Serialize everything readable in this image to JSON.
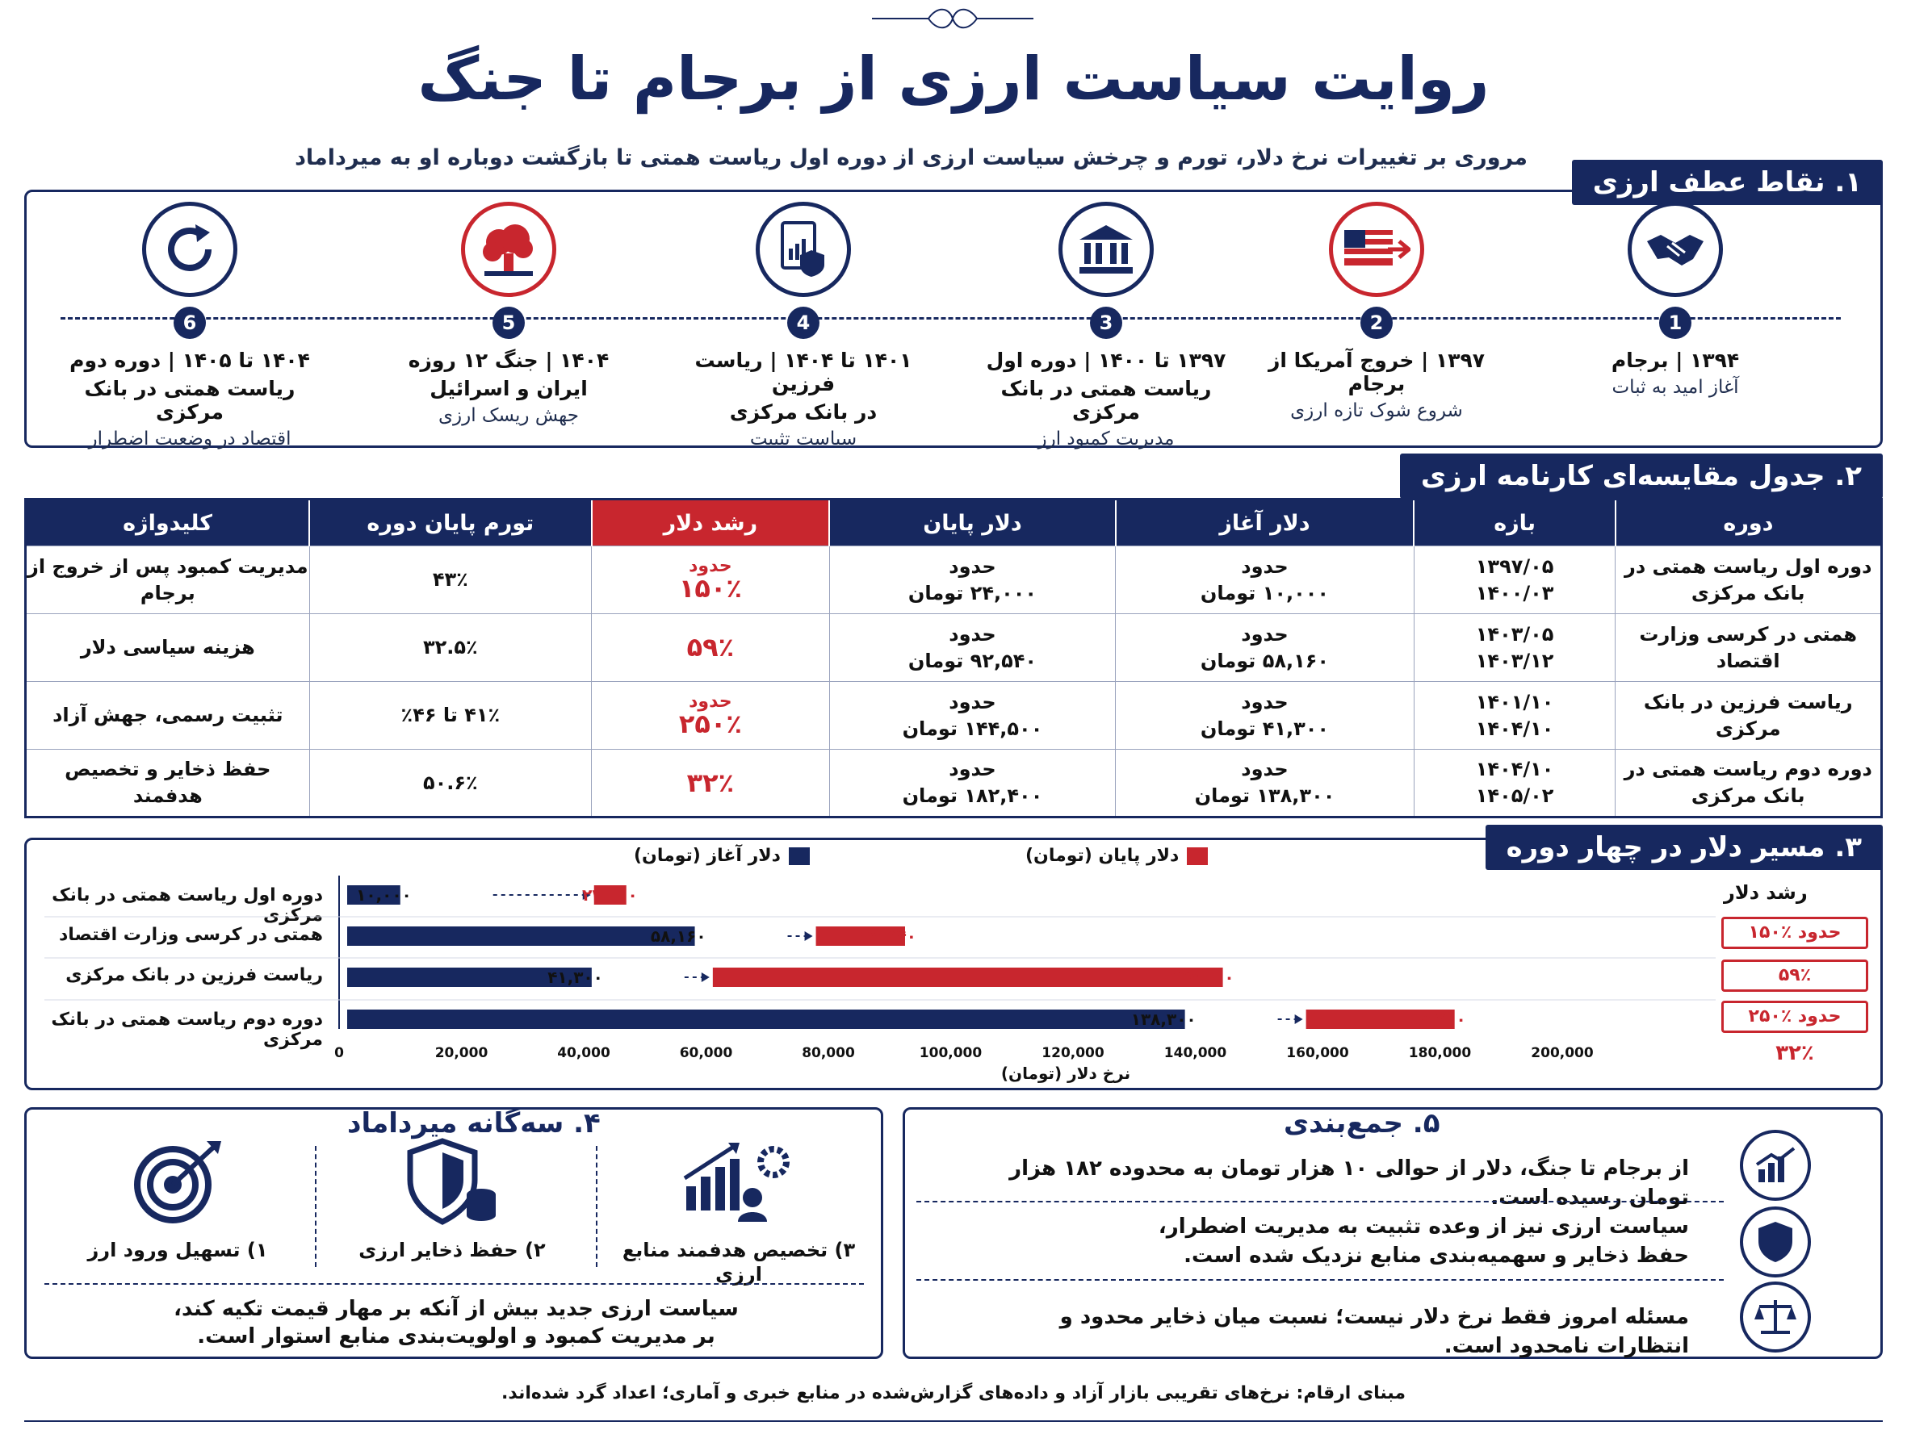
{
  "header": {
    "title": "روایت سیاست ارزی از برجام تا جنگ",
    "subtitle": "مروری بر تغییرات نرخ دلار، تورم و چرخش سیاست ارزی از دوره اول ریاست همتی تا بازگشت دوباره او به میرداماد"
  },
  "section1": {
    "heading": "۱. نقاط عطف ارزی",
    "items": [
      {
        "num": "1",
        "icon": "handshake-icon",
        "title": "۱۳۹۴ | برجام",
        "sub": "",
        "desc": "آغاز امید به ثبات"
      },
      {
        "num": "2",
        "icon": "usa-flag-exit-icon",
        "title": "۱۳۹۷ | خروج آمریکا از برجام",
        "sub": "",
        "desc": "شروع شوک تازه ارزی"
      },
      {
        "num": "3",
        "icon": "bank-building-icon",
        "title": "۱۳۹۷ تا ۱۴۰۰ | دوره اول",
        "sub": "ریاست همتی در بانک مرکزی",
        "desc": "مدیریت کمبود ارز"
      },
      {
        "num": "4",
        "icon": "policy-document-icon",
        "title": "۱۴۰۱ تا ۱۴۰۴ | ریاست فرزین",
        "sub": "در بانک مرکزی",
        "desc": "سیاست تثبیت"
      },
      {
        "num": "5",
        "icon": "explosion-icon",
        "title": "۱۴۰۴ | جنگ ۱۲ روزه",
        "sub": "ایران و اسرائیل",
        "desc": "جهش ریسک ارزی"
      },
      {
        "num": "6",
        "icon": "refresh-icon",
        "title": "۱۴۰۴ تا ۱۴۰۵ | دوره دوم",
        "sub": "ریاست همتی در بانک مرکزی",
        "desc": "اقتصاد در وضعیت اضطرار"
      }
    ]
  },
  "section2": {
    "heading": "۲. جدول مقایسه‌ای کارنامه ارزی",
    "columns": [
      "دوره",
      "بازه",
      "دلار آغاز",
      "دلار پایان",
      "رشد دلار",
      "تورم پایان دوره",
      "کلیدواژه"
    ],
    "rows": [
      {
        "period": "دوره اول ریاست همتی در بانک مرکزی",
        "range1": "۱۳۹۷/۰۵",
        "range2": "۱۴۰۰/۰۳",
        "start_prefix": "حدود",
        "start": "۱۰,۰۰۰ تومان",
        "end_prefix": "حدود",
        "end": "۲۴,۰۰۰ تومان",
        "growth_prefix": "حدود",
        "growth": "۱۵۰٪",
        "inflation": "۴۳٪",
        "keyword": "مدیریت کمبود پس از خروج از برجام"
      },
      {
        "period": "همتی در کرسی وزارت اقتصاد",
        "range1": "۱۴۰۳/۰۵",
        "range2": "۱۴۰۳/۱۲",
        "start_prefix": "حدود",
        "start": "۵۸,۱۶۰ تومان",
        "end_prefix": "حدود",
        "end": "۹۲,۵۴۰ تومان",
        "growth_prefix": "",
        "growth": "۵۹٪",
        "inflation": "۳۲.۵٪",
        "keyword": "هزینه سیاسی دلار"
      },
      {
        "period": "ریاست فرزین در بانک مرکزی",
        "range1": "۱۴۰۱/۱۰",
        "range2": "۱۴۰۴/۱۰",
        "start_prefix": "حدود",
        "start": "۴۱,۳۰۰ تومان",
        "end_prefix": "حدود",
        "end": "۱۴۴,۵۰۰ تومان",
        "growth_prefix": "حدود",
        "growth": "۲۵۰٪",
        "inflation": "۴۱٪ تا ۴۶٪",
        "keyword": "تثبیت رسمی، جهش آزاد"
      },
      {
        "period": "دوره دوم ریاست همتی در بانک مرکزی",
        "range1": "۱۴۰۴/۱۰",
        "range2": "۱۴۰۵/۰۲",
        "start_prefix": "حدود",
        "start": "۱۳۸,۳۰۰ تومان",
        "end_prefix": "حدود",
        "end": "۱۸۲,۴۰۰ تومان",
        "growth_prefix": "",
        "growth": "۳۲٪",
        "inflation": "۵۰.۶٪",
        "keyword": "حفظ ذخایر و تخصیص هدفمند"
      }
    ]
  },
  "chart_data": {
    "type": "bar",
    "title": "۳. مسیر دلار در چهار دوره",
    "xlabel": "نرخ دلار (تومان)",
    "xlim": [
      0,
      200000
    ],
    "ticks": [
      0,
      20000,
      40000,
      60000,
      80000,
      100000,
      120000,
      140000,
      160000,
      180000,
      200000
    ],
    "tick_labels": [
      "0",
      "20,000",
      "40,000",
      "60,000",
      "80,000",
      "100,000",
      "120,000",
      "140,000",
      "160,000",
      "180,000",
      "200,000"
    ],
    "categories": [
      "دوره اول ریاست همتی در بانک مرکزی",
      "همتی در کرسی وزارت اقتصاد",
      "ریاست فرزین در بانک مرکزی",
      "دوره دوم ریاست همتی در بانک مرکزی"
    ],
    "series": [
      {
        "name": "دلار آغاز (تومان)",
        "color": "#17285f",
        "values": [
          10000,
          58160,
          41300,
          138300
        ],
        "labels": [
          "۱۰,۰۰۰",
          "۵۸,۱۶۰",
          "۴۱,۳۰۰",
          "۱۳۸,۳۰۰"
        ]
      },
      {
        "name": "دلار پایان (تومان)",
        "color": "#c8262e",
        "values": [
          24000,
          92540,
          144500,
          182400
        ],
        "labels": [
          "۲۴,۰۰۰",
          "۹۲,۵۴۰",
          "۱۴۴,۵۰۰",
          "۱۸۲,۴۰۰"
        ]
      }
    ],
    "growth_header": "رشد دلار",
    "growth": [
      "حدود ٪۱۵۰",
      "۵۹٪",
      "حدود ٪۲۵۰",
      "۳۲٪"
    ],
    "legend": "top"
  },
  "section4": {
    "heading": "۴. سه‌گانه میرداماد",
    "pillars": [
      {
        "icon": "growth-chart-gear-icon",
        "label": "۳) تخصیص هدفمند منابع ارزی"
      },
      {
        "icon": "shield-coins-icon",
        "label": "۲) حفظ ذخایر ارزی"
      },
      {
        "icon": "target-icon",
        "label": "۱) تسهیل ورود ارز"
      }
    ],
    "note1": "سیاست ارزی جدید بیش از آنکه بر مهار قیمت تکیه کند،",
    "note2": "بر مدیریت کمبود و اولویت‌بندی منابع استوار است."
  },
  "section5": {
    "heading": "۵. جمع‌بندی",
    "items": [
      {
        "icon": "trend-chart-icon",
        "line1": "از برجام تا جنگ، دلار از حوالی ۱۰ هزار تومان به محدوده ۱۸۲ هزار تومان رسیده است.",
        "line2": ""
      },
      {
        "icon": "shield-icon",
        "line1": "سیاست ارزی نیز از وعده تثبیت به مدیریت اضطرار،",
        "line2": "حفظ ذخایر و سهمیه‌بندی منابع نزدیک شده است."
      },
      {
        "icon": "scales-icon",
        "line1": "مسئله امروز فقط نرخ دلار نیست؛ نسبت میان ذخایر محدود و انتظارات نامحدود است.",
        "line2": ""
      }
    ]
  },
  "footnote": "مبنای ارقام: نرخ‌های تقریبی بازار آزاد و داده‌های گزارش‌شده در منابع خبری و آماری؛ اعداد گرد شده‌اند."
}
